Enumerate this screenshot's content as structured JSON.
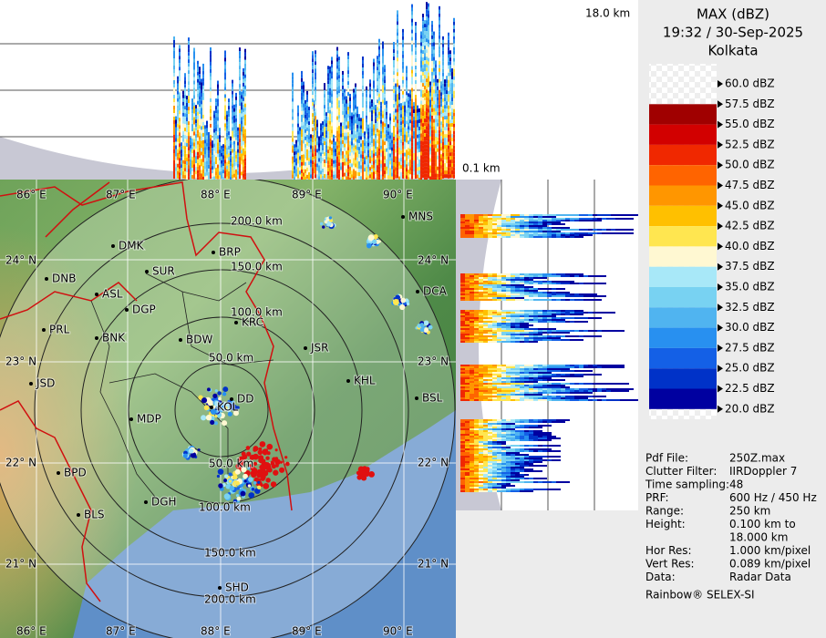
{
  "header": {
    "title": "MAX (dBZ)",
    "time": "19:32 / 30-Sep-2025",
    "station": "Kolkata"
  },
  "section_labels": {
    "top": "18.0 km",
    "bottom": "0.1 km"
  },
  "legend": {
    "levels": [
      {
        "label": "60.0 dBZ"
      },
      {
        "label": "57.5 dBZ",
        "color": "#a00000"
      },
      {
        "label": "55.0 dBZ",
        "color": "#d20000"
      },
      {
        "label": "52.5 dBZ",
        "color": "#f02800"
      },
      {
        "label": "50.0 dBZ",
        "color": "#ff6400"
      },
      {
        "label": "47.5 dBZ",
        "color": "#ff9600"
      },
      {
        "label": "45.0 dBZ",
        "color": "#ffc000"
      },
      {
        "label": "42.5 dBZ",
        "color": "#ffe650"
      },
      {
        "label": "40.0 dBZ",
        "color": "#fff8d2"
      },
      {
        "label": "37.5 dBZ",
        "color": "#a8e8f8"
      },
      {
        "label": "35.0 dBZ",
        "color": "#78d2f2"
      },
      {
        "label": "32.5 dBZ",
        "color": "#50b4f0"
      },
      {
        "label": "30.0 dBZ",
        "color": "#2890f0"
      },
      {
        "label": "27.5 dBZ",
        "color": "#1460e6"
      },
      {
        "label": "25.0 dBZ",
        "color": "#0032c8"
      },
      {
        "label": "22.5 dBZ",
        "color": "#0000a0"
      },
      {
        "label": "20.0 dBZ"
      }
    ]
  },
  "map": {
    "cities": [
      "MNS",
      "BRP",
      "DMK",
      "SUR",
      "DNB",
      "ASL",
      "DGP",
      "KRC",
      "DCA",
      "PRL",
      "BNK",
      "BDW",
      "JSR",
      "KHL",
      "JSD",
      "DD",
      "KOL",
      "BSL",
      "MDP",
      "BPD",
      "DGH",
      "BLS",
      "SHD"
    ],
    "range_labels": [
      "200.0 km",
      "150.0 km",
      "100.0 km",
      "50.0 km",
      "50.0 km",
      "100.0 km",
      "150.0 km",
      "200.0 km"
    ],
    "lon_labels": [
      "86° E",
      "87° E",
      "88° E",
      "89° E",
      "90° E"
    ],
    "lat_labels": [
      "24° N",
      "23° N",
      "22° N",
      "21° N"
    ]
  },
  "info": {
    "rows": [
      {
        "label": "Pdf File:",
        "value": "250Z.max"
      },
      {
        "label": "Clutter Filter:",
        "value": "IIRDoppler 7"
      },
      {
        "label": "Time sampling:",
        "value": "48"
      },
      {
        "label": "PRF:",
        "value": "600 Hz / 450 Hz"
      },
      {
        "label": "Range:",
        "value": "250 km"
      },
      {
        "label": "Height:",
        "value": [
          "0.100 km to",
          "18.000 km"
        ]
      },
      {
        "label": "Hor Res:",
        "value": "1.000 km/pixel"
      },
      {
        "label": "Vert Res:",
        "value": "0.089 km/pixel"
      },
      {
        "label": "Data:",
        "value": "Radar Data"
      }
    ],
    "footer": "Rainbow® SELEX-SI"
  }
}
